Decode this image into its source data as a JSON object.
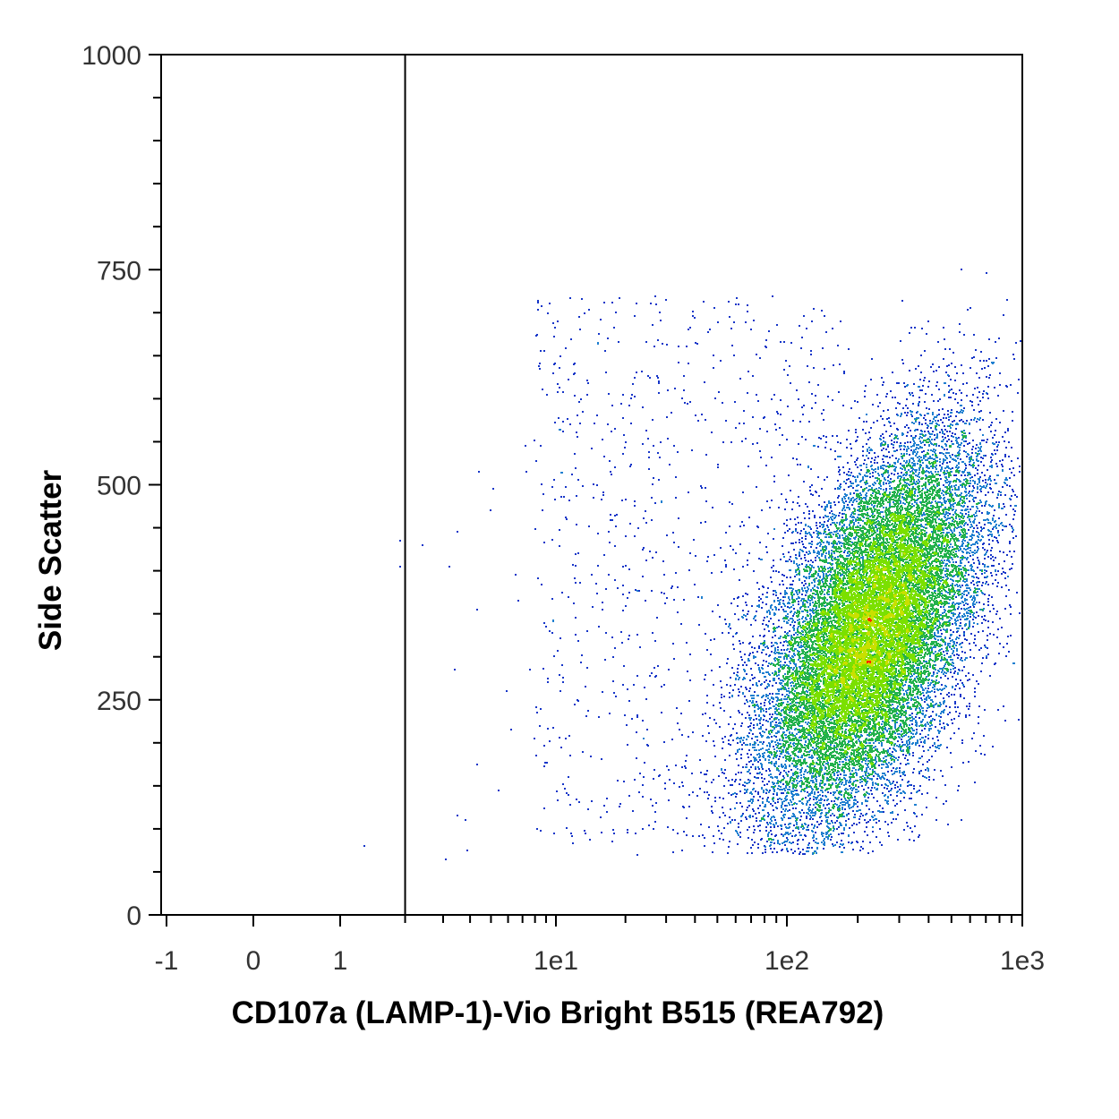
{
  "chart_data": {
    "type": "scatter",
    "title": "",
    "xlabel": "CD107a (LAMP-1)-Vio Bright B515 (REA792)",
    "ylabel": "Side Scatter",
    "x_scale": "biexponential",
    "xlim": [
      -1,
      1000
    ],
    "ylim": [
      0,
      1000
    ],
    "x_ticks": [
      "-1",
      "0",
      "1",
      "1e1",
      "1e2",
      "1e3"
    ],
    "y_ticks": [
      "0",
      "250",
      "500",
      "750",
      "1000"
    ],
    "gate_x": 2,
    "grid": false,
    "legend": "none",
    "colormap": [
      "#1535c8",
      "#1f7fd0",
      "#22b14c",
      "#7be000",
      "#c8e000",
      "#ff2a00"
    ],
    "populations": [
      {
        "name": "",
        "x_center": 230,
        "y_center": 330,
        "x_spread_decades": 0.23,
        "y_sd": 110,
        "count": 22000,
        "y_range": [
          70,
          760
        ]
      }
    ],
    "sparse_events": [
      [
        1.3,
        80
      ],
      [
        1.9,
        435
      ],
      [
        1.9,
        405
      ],
      [
        2.4,
        430
      ],
      [
        3.1,
        65
      ],
      [
        3.2,
        405
      ],
      [
        3.5,
        445
      ],
      [
        3.4,
        285
      ],
      [
        3.5,
        115
      ],
      [
        3.8,
        110
      ],
      [
        3.9,
        75
      ],
      [
        4.3,
        355
      ],
      [
        4.3,
        175
      ],
      [
        4.4,
        515
      ],
      [
        5.0,
        470
      ],
      [
        5.1,
        495
      ],
      [
        5.4,
        145
      ],
      [
        5.9,
        260
      ],
      [
        6.2,
        215
      ],
      [
        6.5,
        395
      ],
      [
        6.7,
        365
      ],
      [
        7.2,
        545
      ],
      [
        7.3,
        515
      ],
      [
        7.6,
        285
      ],
      [
        8.2,
        235
      ],
      [
        8.7,
        470
      ],
      [
        9.0,
        335
      ],
      [
        9.8,
        95
      ],
      [
        10.5,
        260
      ],
      [
        11.0,
        205
      ],
      [
        12.2,
        345
      ],
      [
        12.6,
        695
      ],
      [
        13.1,
        585
      ],
      [
        13.7,
        605
      ],
      [
        14.5,
        485
      ],
      [
        15.3,
        230
      ],
      [
        16.6,
        135
      ],
      [
        18.4,
        465
      ],
      [
        19.5,
        605
      ],
      [
        20.8,
        325
      ],
      [
        22.5,
        70
      ],
      [
        24.0,
        205
      ],
      [
        26.3,
        575
      ],
      [
        28.7,
        375
      ],
      [
        30.0,
        715
      ],
      [
        32.5,
        545
      ],
      [
        35.2,
        75
      ],
      [
        36.8,
        185
      ],
      [
        40.3,
        665
      ],
      [
        45.1,
        255
      ],
      [
        50.2,
        520
      ],
      [
        58.4,
        425
      ],
      [
        62.0,
        710
      ],
      [
        70.3,
        140
      ],
      [
        81.7,
        660
      ],
      [
        88.0,
        605
      ]
    ]
  }
}
